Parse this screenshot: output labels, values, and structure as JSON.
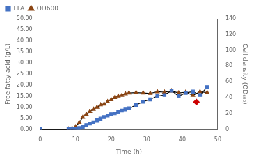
{
  "chart_data": {
    "type": "line",
    "xlabel": "Time (h)",
    "ylabel": "Free fatty acid (g/L)",
    "y2label": "Cell density (OD₆₀₀)",
    "xlim": [
      0,
      50
    ],
    "xticks": [
      0,
      10,
      20,
      30,
      40,
      50
    ],
    "ylim": [
      0,
      50
    ],
    "yticks": [
      {
        "value": 0,
        "label": "0.00"
      },
      {
        "value": 5,
        "label": "5.00"
      },
      {
        "value": 10,
        "label": "10.00"
      },
      {
        "value": 15,
        "label": "15.00"
      },
      {
        "value": 20,
        "label": "20.00"
      },
      {
        "value": 25,
        "label": "25.00"
      },
      {
        "value": 30,
        "label": "30.00"
      },
      {
        "value": 35,
        "label": "35.00"
      },
      {
        "value": 40,
        "label": "40.00"
      },
      {
        "value": 45,
        "label": "45.00"
      },
      {
        "value": 50,
        "label": "50.00"
      }
    ],
    "y2lim": [
      0,
      140
    ],
    "y2ticks": [
      0,
      20,
      40,
      60,
      80,
      100,
      120,
      140
    ],
    "grid": false,
    "legend": "upper left",
    "color": "#000000",
    "series": [
      {
        "name": "FFA",
        "color": "#4472C4",
        "marker": "square",
        "line_style": "solid",
        "axis": "y",
        "x": [
          0,
          8,
          9,
          10,
          11,
          12,
          13,
          14,
          15,
          16,
          17,
          18,
          19,
          20,
          21,
          22,
          23,
          24,
          25,
          27,
          29,
          31,
          33,
          35,
          37,
          39,
          41,
          43,
          45,
          47
        ],
        "values": [
          0.0,
          0.0,
          0.0,
          0.2,
          0.5,
          1.0,
          1.8,
          2.5,
          3.2,
          4.0,
          4.8,
          5.5,
          6.2,
          6.8,
          7.2,
          7.8,
          8.5,
          9.0,
          9.5,
          11.0,
          12.5,
          13.5,
          15.0,
          15.5,
          17.5,
          15.0,
          16.5,
          17.0,
          15.5,
          19.0
        ]
      },
      {
        "name": "OD600",
        "color": "#8B4513",
        "marker": "triangle",
        "line_style": "solid",
        "axis": "y2",
        "x": [
          0,
          8,
          9,
          10,
          11,
          12,
          13,
          14,
          15,
          16,
          17,
          18,
          19,
          20,
          21,
          22,
          23,
          24,
          25,
          27,
          29,
          31,
          33,
          35,
          37,
          39,
          41,
          43,
          45,
          47
        ],
        "values": [
          0.0,
          0.2,
          1.0,
          3.0,
          8.5,
          15.0,
          19.0,
          22.5,
          25.5,
          28.0,
          31.0,
          32.0,
          35.0,
          37.5,
          40.0,
          42.0,
          43.0,
          45.0,
          46.0,
          46.5,
          46.0,
          45.5,
          47.5,
          47.0,
          48.5,
          46.0,
          47.0,
          43.0,
          47.5,
          46.5
        ]
      },
      {
        "color": "#CC0000",
        "marker": "diamond",
        "line_style": "none",
        "axis": "y2",
        "x": [
          44
        ],
        "values": [
          34.5
        ]
      }
    ]
  }
}
